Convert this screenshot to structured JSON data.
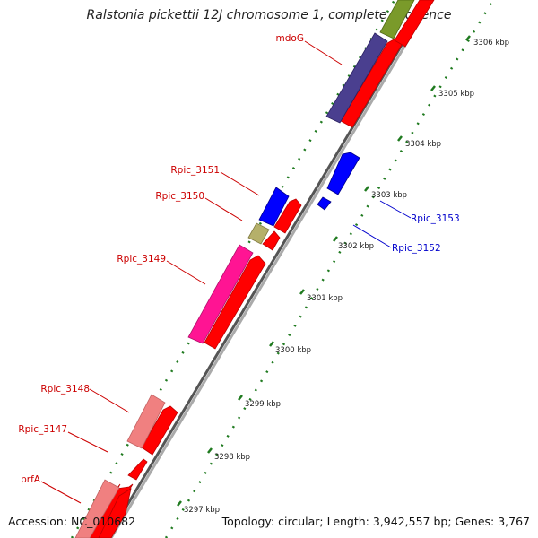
{
  "title": "Ralstonia pickettii 12J chromosome 1, complete sequence",
  "accession": "Accession: NC_010682",
  "summary": "Topology: circular; Length: 3,942,557 bp; Genes: 3,767",
  "colors": {
    "forward_label": "#cc0000",
    "reverse_label": "#0000cc",
    "cds_red": "#ff0000",
    "cds_blue": "#0000ff",
    "cds_pink": "#ff1493",
    "cds_navy": "#4a3f8f",
    "cds_olive": "#b5b06a",
    "cds_salmon": "#f08080",
    "cds_green": "#7a9a2a",
    "gc_green": "#1f7a1f",
    "backbone": "#888888"
  },
  "scale_ticks": [
    "3306 kbp",
    "3305 kbp",
    "3304 kbp",
    "3303 kbp",
    "3302 kbp",
    "3301 kbp",
    "3300 kbp",
    "3299 kbp",
    "3298 kbp",
    "3297 kbp"
  ],
  "gene_labels": {
    "forward": [
      "mdoG",
      "Rpic_3151",
      "Rpic_3150",
      "Rpic_3149",
      "Rpic_3148",
      "Rpic_3147",
      "prfA"
    ],
    "reverse": [
      "Rpic_3153",
      "Rpic_3152"
    ]
  }
}
